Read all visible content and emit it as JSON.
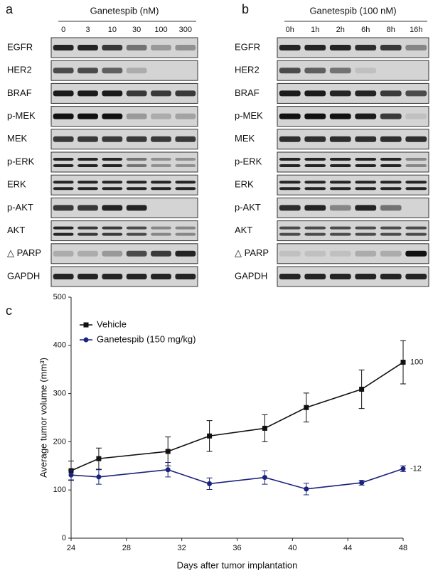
{
  "blots": [
    {
      "letter": "a",
      "header": "Ganetespib (nM)",
      "lanes": [
        "0",
        "3",
        "10",
        "30",
        "100",
        "300"
      ],
      "rows": [
        "EGFR",
        "HER2",
        "BRAF",
        "p-MEK",
        "MEK",
        "p-ERK",
        "ERK",
        "p-AKT",
        "AKT",
        "△ PARP",
        "GAPDH"
      ]
    },
    {
      "letter": "b",
      "header": "Ganetespib (100 nM)",
      "lanes": [
        "0h",
        "1h",
        "2h",
        "6h",
        "8h",
        "16h"
      ],
      "rows": [
        "EGFR",
        "HER2",
        "BRAF",
        "p-MEK",
        "MEK",
        "p-ERK",
        "ERK",
        "p-AKT",
        "AKT",
        "△ PARP",
        "GAPDH"
      ]
    }
  ],
  "chart_data": {
    "type": "line",
    "panel_label": "c",
    "x_label": "Days after tumor implantation",
    "y_label": "Average tumor volume (mm³)",
    "x": [
      24,
      26,
      31,
      34,
      38,
      41,
      45,
      48
    ],
    "series": [
      {
        "name": "Vehicle",
        "color": "#111111",
        "marker": "square",
        "end_label": "100",
        "values": [
          140,
          165,
          180,
          212,
          228,
          271,
          309,
          365
        ],
        "errors": [
          20,
          22,
          30,
          32,
          28,
          30,
          40,
          45
        ]
      },
      {
        "name": "Ganetespib (150 mg/kg)",
        "color": "#1a237e",
        "marker": "circle",
        "end_label": "-12",
        "values": [
          131,
          127,
          142,
          113,
          126,
          102,
          115,
          144
        ],
        "errors": [
          10,
          15,
          15,
          12,
          14,
          12,
          5,
          6
        ]
      }
    ],
    "xlim": [
      24,
      48
    ],
    "xticks": [
      24,
      28,
      32,
      36,
      40,
      44,
      48
    ],
    "ylim": [
      0,
      500
    ],
    "yticks": [
      0,
      100,
      200,
      300,
      400,
      500
    ]
  }
}
